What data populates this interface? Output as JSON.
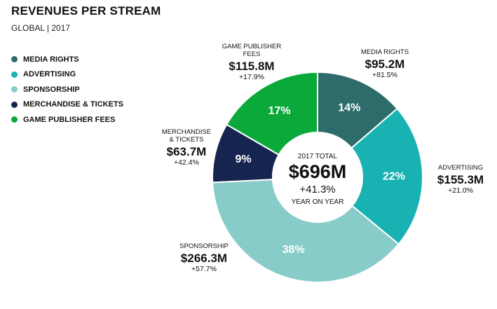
{
  "header": {
    "title": "REVENUES PER STREAM",
    "subtitle": "GLOBAL | 2017"
  },
  "legend": [
    {
      "label": "MEDIA RIGHTS",
      "color": "#2e6b6b"
    },
    {
      "label": "ADVERTISING",
      "color": "#18b2b2"
    },
    {
      "label": "SPONSORSHIP",
      "color": "#87ccc8"
    },
    {
      "label": "MERCHANDISE & TICKETS",
      "color": "#15254f"
    },
    {
      "label": "GAME PUBLISHER FEES",
      "color": "#0aa93a"
    }
  ],
  "center": {
    "top": "2017 TOTAL",
    "total": "$696M",
    "growth": "+41.3%",
    "bottom": "YEAR ON YEAR"
  },
  "callouts": {
    "game_publisher": {
      "name_1": "GAME PUBLISHER",
      "name_2": "FEES",
      "value": "$115.8M",
      "growth": "+17.9%"
    },
    "media_rights": {
      "name_1": "MEDIA RIGHTS",
      "value": "$95.2M",
      "growth": "+81.5%"
    },
    "merchandise": {
      "name_1": "MERCHANDISE",
      "name_2": "& TICKETS",
      "value": "$63.7M",
      "growth": "+42.4%"
    },
    "advertising": {
      "name_1": "ADVERTISING",
      "value": "$155.3M",
      "growth": "+21.0%"
    },
    "sponsorship": {
      "name_1": "SPONSORSHIP",
      "value": "$266.3M",
      "growth": "+57.7%"
    }
  },
  "chart_data": {
    "type": "pie",
    "title": "REVENUES PER STREAM",
    "subtitle": "GLOBAL | 2017",
    "legend_position": "left",
    "slices": [
      {
        "name": "MEDIA RIGHTS",
        "value": 95.2,
        "percent": 14,
        "label": "14%",
        "color": "#2e6b6b"
      },
      {
        "name": "ADVERTISING",
        "value": 155.3,
        "percent": 22,
        "label": "22%",
        "color": "#18b2b2"
      },
      {
        "name": "SPONSORSHIP",
        "value": 266.3,
        "percent": 38,
        "label": "38%",
        "color": "#87ccc8"
      },
      {
        "name": "MERCHANDISE & TICKETS",
        "value": 63.7,
        "percent": 9,
        "label": "9%",
        "color": "#15254f"
      },
      {
        "name": "GAME PUBLISHER FEES",
        "value": 115.8,
        "percent": 17,
        "label": "17%",
        "color": "#0aa93a"
      }
    ],
    "total": 696
  }
}
